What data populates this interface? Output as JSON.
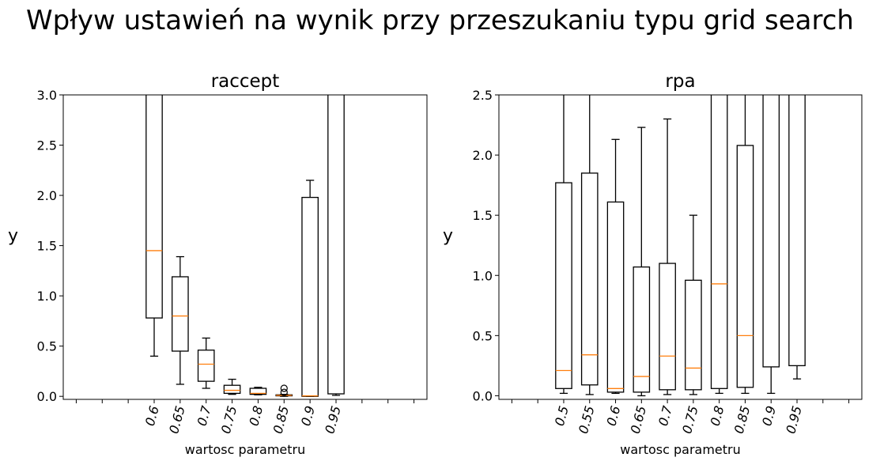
{
  "figure": {
    "suptitle": "Wpływ ustawień na wynik przy przeszukaniu typu grid search"
  },
  "colors": {
    "box": "#000000",
    "median": "#ff7f0e",
    "background": "#ffffff"
  },
  "chart_data": [
    {
      "type": "box",
      "title": "raccept",
      "xlabel": "wartosc parametru",
      "ylabel": "y",
      "ylim": [
        -0.03,
        3.0
      ],
      "yticks": [
        0.0,
        0.5,
        1.0,
        1.5,
        2.0,
        2.5,
        3.0
      ],
      "ytick_labels": [
        "0.0",
        "0.5",
        "1.0",
        "1.5",
        "2.0",
        "2.5",
        "3.0"
      ],
      "positions": [
        1,
        2,
        3,
        4,
        5,
        6,
        7,
        8,
        9,
        10,
        11,
        12,
        13,
        14
      ],
      "xlim": [
        0.5,
        14.5
      ],
      "categories": [
        "0.6",
        "0.65",
        "0.7",
        "0.75",
        "0.8",
        "0.85",
        "0.9",
        "0.95"
      ],
      "series": [
        {
          "label": "0.6",
          "position": 4,
          "whislo": 0.4,
          "q1": 0.78,
          "median": 1.45,
          "q3": 3.6,
          "whishi": 5.0,
          "fliers": []
        },
        {
          "label": "0.65",
          "position": 5,
          "whislo": 0.12,
          "q1": 0.45,
          "median": 0.8,
          "q3": 1.19,
          "whishi": 1.39,
          "fliers": []
        },
        {
          "label": "0.7",
          "position": 6,
          "whislo": 0.08,
          "q1": 0.15,
          "median": 0.32,
          "q3": 0.46,
          "whishi": 0.58,
          "fliers": []
        },
        {
          "label": "0.75",
          "position": 7,
          "whislo": 0.02,
          "q1": 0.03,
          "median": 0.06,
          "q3": 0.11,
          "whishi": 0.17,
          "fliers": []
        },
        {
          "label": "0.8",
          "position": 8,
          "whislo": 0.015,
          "q1": 0.02,
          "median": 0.03,
          "q3": 0.08,
          "whishi": 0.09,
          "fliers": []
        },
        {
          "label": "0.85",
          "position": 9,
          "whislo": 0.0,
          "q1": 0.005,
          "median": 0.01,
          "q3": 0.015,
          "whishi": 0.02,
          "fliers": [
            0.04,
            0.08
          ]
        },
        {
          "label": "0.9",
          "position": 10,
          "whislo": 0.0,
          "q1": 0.0,
          "median": 0.005,
          "q3": 1.98,
          "whishi": 2.15,
          "fliers": []
        },
        {
          "label": "0.95",
          "position": 11,
          "whislo": 0.01,
          "q1": 0.025,
          "median": 3.5,
          "q3": 5.0,
          "whishi": 6.0,
          "fliers": []
        }
      ]
    },
    {
      "type": "box",
      "title": "rpa",
      "xlabel": "wartosc parametru",
      "ylabel": "y",
      "ylim": [
        -0.03,
        2.5
      ],
      "yticks": [
        0.0,
        0.5,
        1.0,
        1.5,
        2.0,
        2.5
      ],
      "ytick_labels": [
        "0.0",
        "0.5",
        "1.0",
        "1.5",
        "2.0",
        "2.5"
      ],
      "positions": [
        1,
        2,
        3,
        4,
        5,
        6,
        7,
        8,
        9,
        10,
        11,
        12,
        13,
        14
      ],
      "xlim": [
        0.5,
        14.5
      ],
      "categories": [
        "0.5",
        "0.55",
        "0.6",
        "0.65",
        "0.7",
        "0.75",
        "0.8",
        "0.85",
        "0.9",
        "0.95"
      ],
      "series": [
        {
          "label": "0.5",
          "position": 3,
          "whislo": 0.02,
          "q1": 0.06,
          "median": 0.21,
          "q3": 1.77,
          "whishi": 3.0,
          "fliers": []
        },
        {
          "label": "0.55",
          "position": 4,
          "whislo": 0.01,
          "q1": 0.09,
          "median": 0.34,
          "q3": 1.85,
          "whishi": 3.0,
          "fliers": []
        },
        {
          "label": "0.6",
          "position": 5,
          "whislo": 0.02,
          "q1": 0.03,
          "median": 0.06,
          "q3": 1.61,
          "whishi": 2.13,
          "fliers": []
        },
        {
          "label": "0.65",
          "position": 6,
          "whislo": 0.0,
          "q1": 0.03,
          "median": 0.16,
          "q3": 1.07,
          "whishi": 2.23,
          "fliers": []
        },
        {
          "label": "0.7",
          "position": 7,
          "whislo": 0.01,
          "q1": 0.05,
          "median": 0.33,
          "q3": 1.1,
          "whishi": 2.3,
          "fliers": []
        },
        {
          "label": "0.75",
          "position": 8,
          "whislo": 0.01,
          "q1": 0.05,
          "median": 0.23,
          "q3": 0.96,
          "whishi": 1.5,
          "fliers": []
        },
        {
          "label": "0.8",
          "position": 9,
          "whislo": 0.02,
          "q1": 0.06,
          "median": 0.93,
          "q3": 3.0,
          "whishi": 4.0,
          "fliers": []
        },
        {
          "label": "0.85",
          "position": 10,
          "whislo": 0.02,
          "q1": 0.07,
          "median": 0.5,
          "q3": 2.08,
          "whishi": 3.0,
          "fliers": []
        },
        {
          "label": "0.9",
          "position": 11,
          "whislo": 0.02,
          "q1": 0.24,
          "median": 2.9,
          "q3": 3.5,
          "whishi": 4.0,
          "fliers": []
        },
        {
          "label": "0.95",
          "position": 12,
          "whislo": 0.14,
          "q1": 0.25,
          "median": 2.9,
          "q3": 3.5,
          "whishi": 4.0,
          "fliers": []
        }
      ]
    }
  ]
}
